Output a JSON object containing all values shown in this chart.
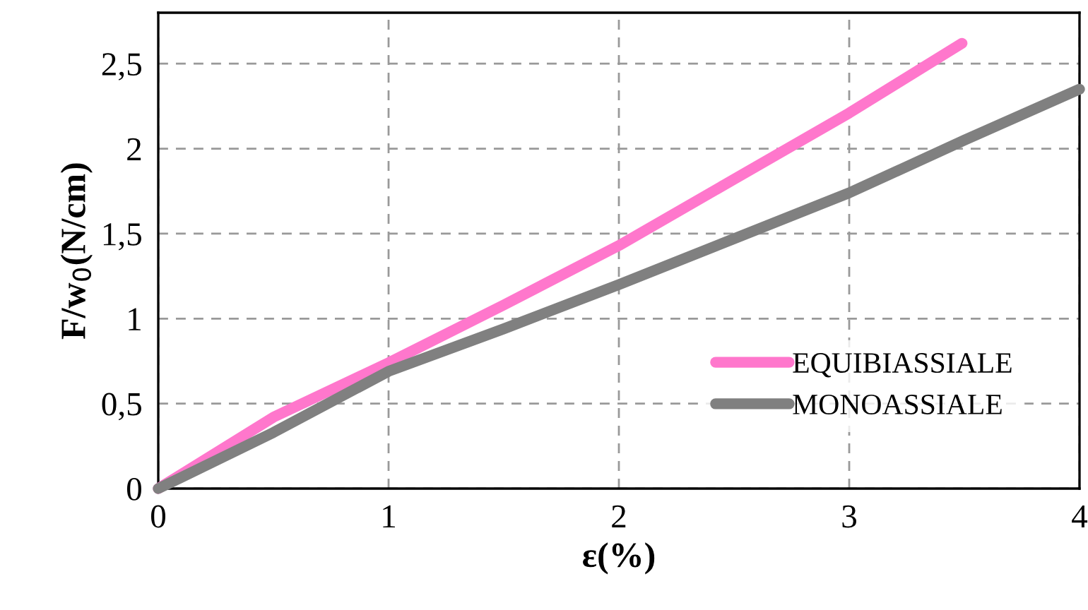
{
  "chart_data": {
    "type": "line",
    "xlabel": "ε(%)",
    "ylabel": "F/w$_{0}$(N/cm)",
    "xlim": [
      0,
      4
    ],
    "xticks": [
      0,
      1,
      2,
      3,
      4
    ],
    "ylim": [
      0,
      2.8
    ],
    "yticks": [
      0,
      {
        "value": 0.5,
        "label": "0,5"
      },
      1,
      {
        "value": 1.5,
        "label": "1,5"
      },
      2,
      {
        "value": 2.5,
        "label": "2,5"
      }
    ],
    "grid": true,
    "legend": "bottom right",
    "line_style": "solid",
    "marker": "none",
    "series": [
      {
        "name": "EQUIBIASSIALE",
        "color": "#ff77cc",
        "x": [
          0,
          0.5,
          1,
          1.5,
          2,
          2.5,
          3,
          3.49
        ],
        "values": [
          0,
          0.42,
          0.74,
          1.08,
          1.43,
          1.82,
          2.21,
          2.62
        ]
      },
      {
        "name": "MONOASSIALE",
        "color": "#808080",
        "x": [
          0,
          0.5,
          1,
          1.5,
          2,
          2.5,
          3,
          3.5,
          4
        ],
        "values": [
          0,
          0.33,
          0.69,
          0.94,
          1.2,
          1.47,
          1.74,
          2.05,
          2.35
        ]
      }
    ]
  }
}
